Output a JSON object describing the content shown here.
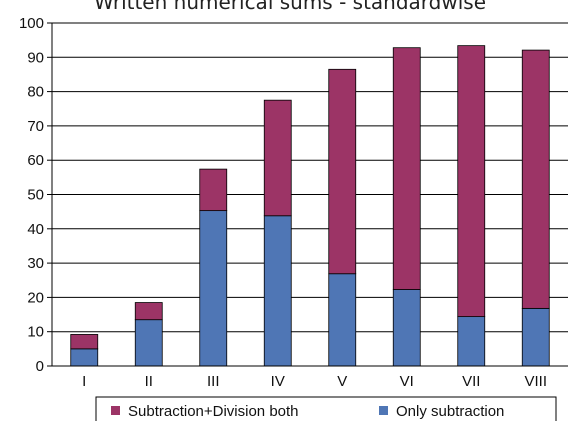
{
  "chart_data": {
    "type": "bar",
    "stacked": true,
    "title": "Written numerical sums - standardwise",
    "xlabel": "",
    "ylabel": "",
    "categories": [
      "I",
      "II",
      "III",
      "IV",
      "V",
      "VI",
      "VII",
      "VIII"
    ],
    "series": [
      {
        "name": "Only subtraction",
        "color": "#4f76b5",
        "values": [
          5,
          13.5,
          45.3,
          43.8,
          26.9,
          22.3,
          14.4,
          16.8
        ]
      },
      {
        "name": "Subtraction+Division both",
        "color": "#9c3466",
        "values": [
          4.2,
          5,
          12.1,
          33.7,
          59.6,
          70.5,
          79,
          75.3
        ]
      }
    ],
    "ylim": [
      0,
      100
    ],
    "yticks": [
      0,
      10,
      20,
      30,
      40,
      50,
      60,
      70,
      80,
      90,
      100
    ],
    "grid": true,
    "legend": {
      "placement": "bottom",
      "entries": [
        "Subtraction+Division both",
        "Only subtraction"
      ]
    }
  }
}
